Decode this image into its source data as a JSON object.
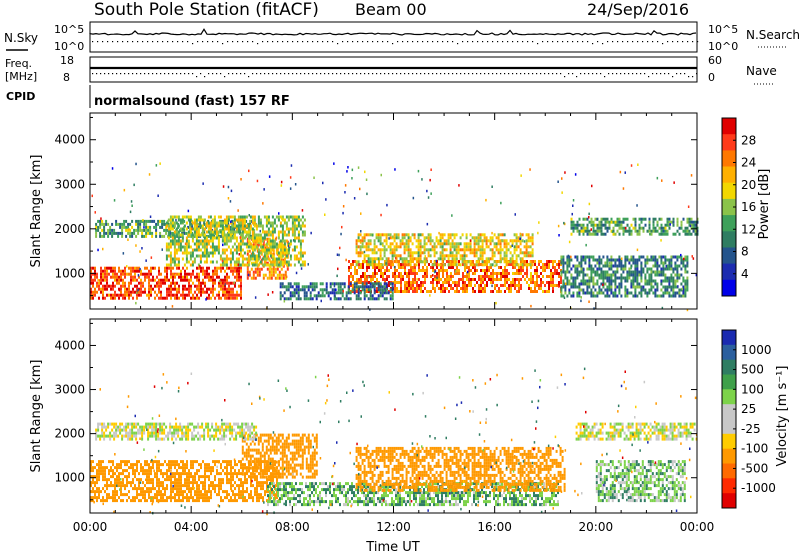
{
  "header": {
    "title": "South Pole Station (fitACF)",
    "beam": "Beam 00",
    "date": "24/Sep/2016"
  },
  "top_panels": {
    "nsky_label": "N.Sky",
    "nsky_ticks": [
      "10^5",
      "10^0"
    ],
    "nsearch_label": "N.Search",
    "nsearch_ticks": [
      "10^5",
      "10^0"
    ],
    "freq_label_1": "Freq.",
    "freq_label_2": "[MHz]",
    "freq_ticks": [
      "18",
      "8"
    ],
    "nave_label": "Nave",
    "nave_ticks": [
      "60",
      "0"
    ],
    "cpid_label": "CPID",
    "cpid_text": "normalsound (fast) 157 RF"
  },
  "colorbar_power": {
    "title": "Power [dB]",
    "labels": [
      "28",
      "24",
      "20",
      "16",
      "12",
      "8",
      "4"
    ],
    "colors": [
      "#e00000",
      "#ff3a1a",
      "#ff7800",
      "#ffb000",
      "#f2d700",
      "#8bc34a",
      "#3ea05a",
      "#2f7d62",
      "#24548c",
      "#1c2cb0",
      "#0000e8"
    ]
  },
  "colorbar_velocity": {
    "title": "Velocity [m s⁻¹]",
    "labels": [
      "1000",
      "500",
      "100",
      "25",
      "-25",
      "-100",
      "-500",
      "-1000"
    ],
    "colors": [
      "#1a2ab0",
      "#2b5f9e",
      "#2f7d62",
      "#3fa04a",
      "#7dd34a",
      "#c8c8c8",
      "#c8c8c8",
      "#ffcc00",
      "#ff9900",
      "#ff6a00",
      "#ff2a00",
      "#e00000"
    ]
  },
  "chart_data": [
    {
      "type": "heatmap",
      "name_hint": "power",
      "xlabel": "",
      "ylabel": "Slant Range [km]",
      "xlim": [
        0,
        24
      ],
      "ylim": [
        200,
        4600
      ],
      "yticks": [
        "1000",
        "2000",
        "3000",
        "4000"
      ],
      "xticks": [
        "00:00",
        "04:00",
        "08:00",
        "12:00",
        "16:00",
        "20:00",
        "00:00"
      ],
      "colorbar": "Power [dB]",
      "regions": [
        {
          "t0": 0.0,
          "t1": 6.0,
          "r0": 450,
          "r1": 1150,
          "value": 26
        },
        {
          "t0": 6.2,
          "t1": 7.8,
          "r0": 900,
          "r1": 1800,
          "value": 22
        },
        {
          "t0": 0.2,
          "t1": 6.6,
          "r0": 1850,
          "r1": 2200,
          "value": 12
        },
        {
          "t0": 3.0,
          "t1": 8.5,
          "r0": 1200,
          "r1": 2300,
          "value": 16
        },
        {
          "t0": 10.2,
          "t1": 18.6,
          "r0": 600,
          "r1": 1300,
          "value": 24
        },
        {
          "t0": 10.5,
          "t1": 17.5,
          "r0": 1200,
          "r1": 1900,
          "value": 18
        },
        {
          "t0": 18.6,
          "t1": 23.6,
          "r0": 500,
          "r1": 1400,
          "value": 10
        },
        {
          "t0": 19.0,
          "t1": 24.0,
          "r0": 1850,
          "r1": 2250,
          "value": 12
        },
        {
          "t0": 7.5,
          "t1": 12.0,
          "r0": 400,
          "r1": 800,
          "value": 8
        }
      ]
    },
    {
      "type": "heatmap",
      "name_hint": "velocity",
      "xlabel": "Time UT",
      "ylabel": "Slant Range [km]",
      "xlim": [
        0,
        24
      ],
      "ylim": [
        200,
        4600
      ],
      "yticks": [
        "1000",
        "2000",
        "3000",
        "4000"
      ],
      "xticks": [
        "00:00",
        "04:00",
        "08:00",
        "12:00",
        "16:00",
        "20:00",
        "00:00"
      ],
      "colorbar": "Velocity [m s⁻¹]",
      "regions": [
        {
          "t0": 0.0,
          "t1": 7.5,
          "r0": 450,
          "r1": 1400,
          "value": -300
        },
        {
          "t0": 6.0,
          "t1": 9.0,
          "r0": 1000,
          "r1": 2000,
          "value": -300
        },
        {
          "t0": 0.2,
          "t1": 6.6,
          "r0": 1850,
          "r1": 2250,
          "value": 0
        },
        {
          "t0": 7.0,
          "t1": 18.5,
          "r0": 400,
          "r1": 900,
          "value": 80
        },
        {
          "t0": 10.5,
          "t1": 18.8,
          "r0": 700,
          "r1": 1700,
          "value": -300
        },
        {
          "t0": 19.2,
          "t1": 24.0,
          "r0": 1850,
          "r1": 2250,
          "value": 0
        },
        {
          "t0": 20.0,
          "t1": 23.5,
          "r0": 500,
          "r1": 1400,
          "value": 60
        }
      ]
    }
  ]
}
